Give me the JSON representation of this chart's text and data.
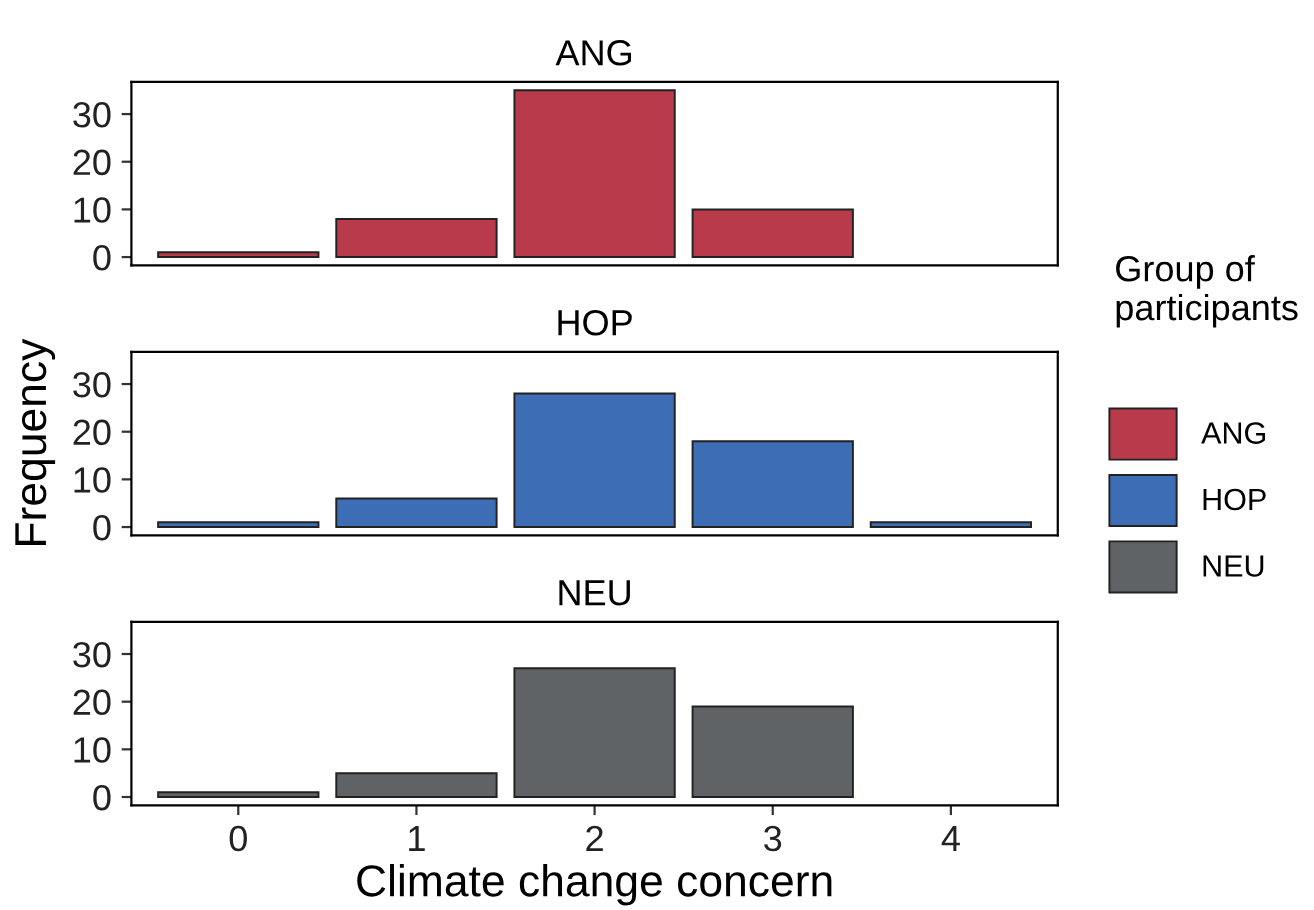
{
  "chart_data": [
    {
      "type": "bar",
      "title": "ANG",
      "categories": [
        "0",
        "1",
        "2",
        "3",
        "4"
      ],
      "series": [
        {
          "name": "ANG",
          "color": "#b93a4a",
          "values": [
            1,
            8,
            35,
            10,
            null
          ]
        }
      ],
      "ylim": [
        -1.75,
        36.75
      ],
      "yticks": [
        0,
        10,
        20,
        30
      ],
      "tick_labels": "y",
      "legend": "right",
      "legend_title": "Group of participants"
    },
    {
      "type": "bar",
      "title": "HOP",
      "categories": [
        "0",
        "1",
        "2",
        "3",
        "4"
      ],
      "series": [
        {
          "name": "HOP",
          "color": "#3d6db5",
          "values": [
            1,
            6,
            28,
            18,
            1
          ]
        }
      ],
      "ylim": [
        -1.75,
        36.75
      ],
      "yticks": [
        0,
        10,
        20,
        30
      ],
      "tick_labels": "y",
      "legend": "right",
      "ylabel": "Frequency"
    },
    {
      "type": "bar",
      "title": "NEU",
      "categories": [
        "0",
        "1",
        "2",
        "3",
        "4"
      ],
      "series": [
        {
          "name": "NEU",
          "color": "#5f6366",
          "values": [
            1,
            5,
            27,
            19,
            null
          ]
        }
      ],
      "ylim": [
        -1.75,
        36.75
      ],
      "yticks": [
        0,
        10,
        20,
        30
      ],
      "legend": "right",
      "xlabel": "Climate change concern"
    }
  ]
}
